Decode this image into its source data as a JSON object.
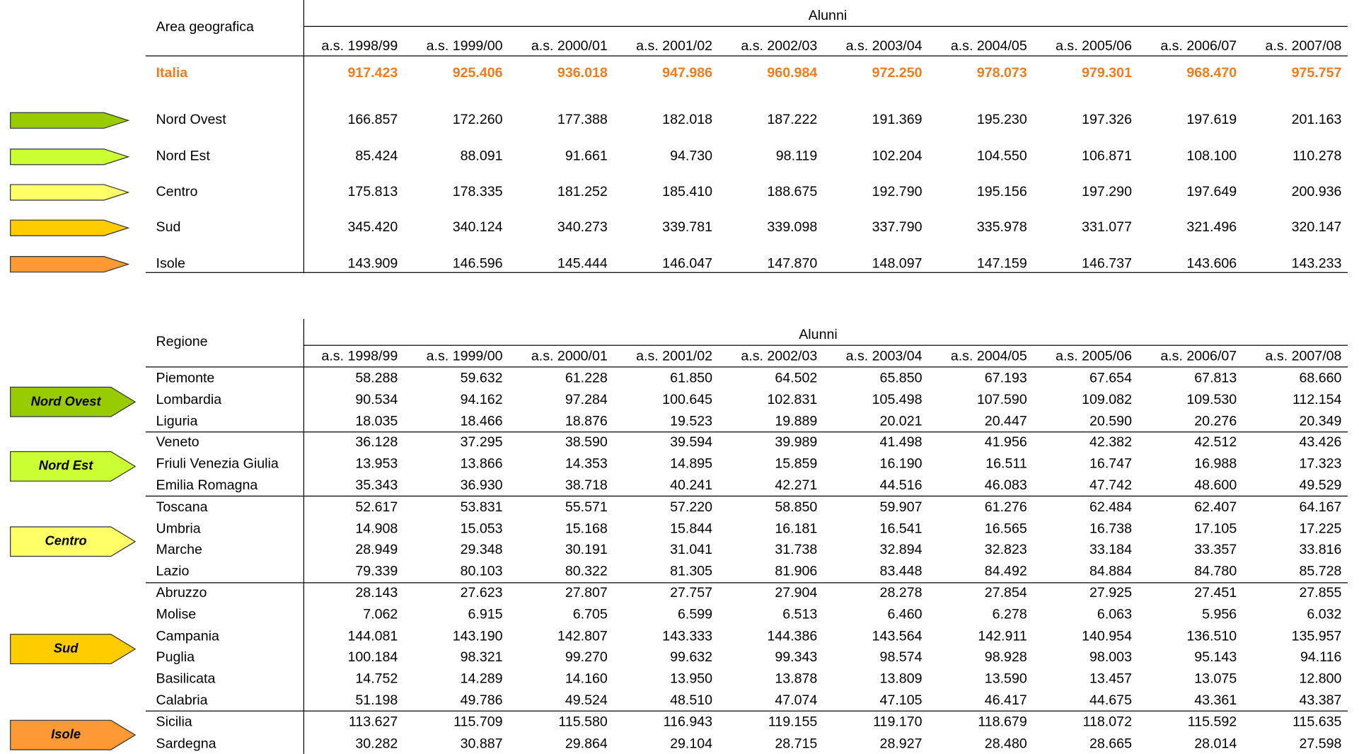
{
  "table1": {
    "header": "Area geografica",
    "group_label": "Alunni",
    "years": [
      "a.s. 1998/99",
      "a.s. 1999/00",
      "a.s. 2000/01",
      "a.s. 2001/02",
      "a.s. 2002/03",
      "a.s. 2003/04",
      "a.s. 2004/05",
      "a.s. 2005/06",
      "a.s. 2006/07",
      "a.s. 2007/08"
    ],
    "rows": [
      {
        "label": "Italia",
        "values": [
          "917.423",
          "925.406",
          "936.018",
          "947.986",
          "960.984",
          "972.250",
          "978.073",
          "979.301",
          "968.470",
          "975.757"
        ]
      },
      {
        "label": "Nord Ovest",
        "values": [
          "166.857",
          "172.260",
          "177.388",
          "182.018",
          "187.222",
          "191.369",
          "195.230",
          "197.326",
          "197.619",
          "201.163"
        ]
      },
      {
        "label": "Nord Est",
        "values": [
          "85.424",
          "88.091",
          "91.661",
          "94.730",
          "98.119",
          "102.204",
          "104.550",
          "106.871",
          "108.100",
          "110.278"
        ]
      },
      {
        "label": "Centro",
        "values": [
          "175.813",
          "178.335",
          "181.252",
          "185.410",
          "188.675",
          "192.790",
          "195.156",
          "197.290",
          "197.649",
          "200.936"
        ]
      },
      {
        "label": "Sud",
        "values": [
          "345.420",
          "340.124",
          "340.273",
          "339.781",
          "339.098",
          "337.790",
          "335.978",
          "331.077",
          "321.496",
          "320.147"
        ]
      },
      {
        "label": "Isole",
        "values": [
          "143.909",
          "146.596",
          "145.444",
          "146.047",
          "147.870",
          "148.097",
          "147.159",
          "146.737",
          "143.606",
          "143.233"
        ]
      }
    ]
  },
  "table2": {
    "header": "Regione",
    "group_label": "Alunni",
    "years": [
      "a.s. 1998/99",
      "a.s. 1999/00",
      "a.s. 2000/01",
      "a.s. 2001/02",
      "a.s. 2002/03",
      "a.s. 2003/04",
      "a.s. 2004/05",
      "a.s. 2005/06",
      "a.s. 2006/07",
      "a.s. 2007/08"
    ],
    "groups": [
      {
        "label": "Nord Ovest",
        "rows": [
          {
            "label": "Piemonte",
            "values": [
              "58.288",
              "59.632",
              "61.228",
              "61.850",
              "64.502",
              "65.850",
              "67.193",
              "67.654",
              "67.813",
              "68.660"
            ]
          },
          {
            "label": "Lombardia",
            "values": [
              "90.534",
              "94.162",
              "97.284",
              "100.645",
              "102.831",
              "105.498",
              "107.590",
              "109.082",
              "109.530",
              "112.154"
            ]
          },
          {
            "label": "Liguria",
            "values": [
              "18.035",
              "18.466",
              "18.876",
              "19.523",
              "19.889",
              "20.021",
              "20.447",
              "20.590",
              "20.276",
              "20.349"
            ]
          }
        ]
      },
      {
        "label": "Nord Est",
        "rows": [
          {
            "label": "Veneto",
            "values": [
              "36.128",
              "37.295",
              "38.590",
              "39.594",
              "39.989",
              "41.498",
              "41.956",
              "42.382",
              "42.512",
              "43.426"
            ]
          },
          {
            "label": "Friuli Venezia Giulia",
            "values": [
              "13.953",
              "13.866",
              "14.353",
              "14.895",
              "15.859",
              "16.190",
              "16.511",
              "16.747",
              "16.988",
              "17.323"
            ]
          },
          {
            "label": "Emilia Romagna",
            "values": [
              "35.343",
              "36.930",
              "38.718",
              "40.241",
              "42.271",
              "44.516",
              "46.083",
              "47.742",
              "48.600",
              "49.529"
            ]
          }
        ]
      },
      {
        "label": "Centro",
        "rows": [
          {
            "label": "Toscana",
            "values": [
              "52.617",
              "53.831",
              "55.571",
              "57.220",
              "58.850",
              "59.907",
              "61.276",
              "62.484",
              "62.407",
              "64.167"
            ]
          },
          {
            "label": "Umbria",
            "values": [
              "14.908",
              "15.053",
              "15.168",
              "15.844",
              "16.181",
              "16.541",
              "16.565",
              "16.738",
              "17.105",
              "17.225"
            ]
          },
          {
            "label": "Marche",
            "values": [
              "28.949",
              "29.348",
              "30.191",
              "31.041",
              "31.738",
              "32.894",
              "32.823",
              "33.184",
              "33.357",
              "33.816"
            ]
          },
          {
            "label": "Lazio",
            "values": [
              "79.339",
              "80.103",
              "80.322",
              "81.305",
              "81.906",
              "83.448",
              "84.492",
              "84.884",
              "84.780",
              "85.728"
            ]
          }
        ]
      },
      {
        "label": "Sud",
        "rows": [
          {
            "label": "Abruzzo",
            "values": [
              "28.143",
              "27.623",
              "27.807",
              "27.757",
              "27.904",
              "28.278",
              "27.854",
              "27.925",
              "27.451",
              "27.855"
            ]
          },
          {
            "label": "Molise",
            "values": [
              "7.062",
              "6.915",
              "6.705",
              "6.599",
              "6.513",
              "6.460",
              "6.278",
              "6.063",
              "5.956",
              "6.032"
            ]
          },
          {
            "label": "Campania",
            "values": [
              "144.081",
              "143.190",
              "142.807",
              "143.333",
              "144.386",
              "143.564",
              "142.911",
              "140.954",
              "136.510",
              "135.957"
            ]
          },
          {
            "label": "Puglia",
            "values": [
              "100.184",
              "98.321",
              "99.270",
              "99.632",
              "99.343",
              "98.574",
              "98.928",
              "98.003",
              "95.143",
              "94.116"
            ]
          },
          {
            "label": "Basilicata",
            "values": [
              "14.752",
              "14.289",
              "14.160",
              "13.950",
              "13.878",
              "13.809",
              "13.590",
              "13.457",
              "13.075",
              "12.800"
            ]
          },
          {
            "label": "Calabria",
            "values": [
              "51.198",
              "49.786",
              "49.524",
              "48.510",
              "47.074",
              "47.105",
              "46.417",
              "44.675",
              "43.361",
              "43.387"
            ]
          }
        ]
      },
      {
        "label": "Isole",
        "rows": [
          {
            "label": "Sicilia",
            "values": [
              "113.627",
              "115.709",
              "115.580",
              "116.943",
              "119.155",
              "119.170",
              "118.679",
              "118.072",
              "115.592",
              "115.635"
            ]
          },
          {
            "label": "Sardegna",
            "values": [
              "30.282",
              "30.887",
              "29.864",
              "29.104",
              "28.715",
              "28.927",
              "28.480",
              "28.665",
              "28.014",
              "27.598"
            ]
          }
        ]
      }
    ]
  }
}
